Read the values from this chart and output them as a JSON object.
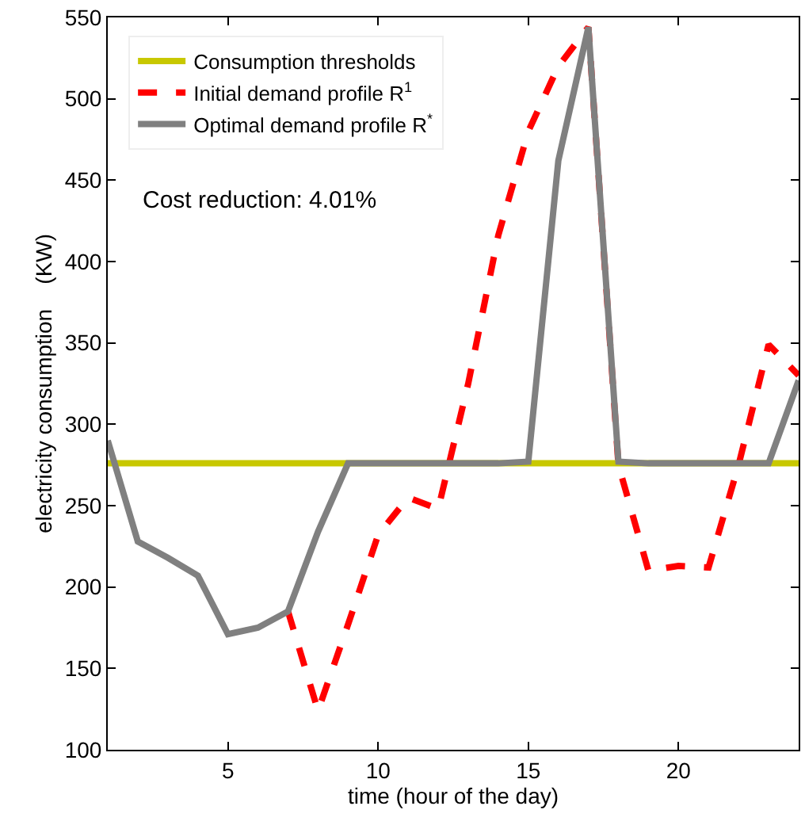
{
  "chart_data": {
    "type": "line",
    "xlabel": "time (hour of the day)",
    "ylabel": "electricity consumption    (KW)",
    "x": [
      1,
      2,
      3,
      4,
      5,
      6,
      7,
      8,
      9,
      10,
      11,
      12,
      13,
      14,
      15,
      16,
      17,
      18,
      19,
      20,
      21,
      22,
      23,
      24
    ],
    "series": [
      {
        "name": "Consumption thresholds",
        "color": "#c8c800",
        "x": [
          1,
          24
        ],
        "values": [
          276,
          276
        ],
        "line_style": "solid"
      },
      {
        "name": "Initial demand profile R$^{1}$",
        "color": "#ff0000",
        "values": [
          null,
          null,
          null,
          null,
          null,
          null,
          185,
          124,
          177,
          232,
          255,
          248,
          325,
          416,
          480,
          520,
          544,
          275,
          210,
          213,
          212,
          275,
          349,
          330
        ],
        "line_style": "dashed"
      },
      {
        "name": "Optimal demand profile R$^{*}$",
        "color": "#808080",
        "values": [
          290,
          228,
          218,
          207,
          171,
          175,
          185,
          234,
          276,
          276,
          276,
          276,
          276,
          276,
          277,
          462,
          544,
          277,
          276,
          276,
          276,
          276,
          276,
          327
        ],
        "line_style": "solid"
      }
    ],
    "xlim": [
      1,
      24
    ],
    "xticks": [
      5,
      10,
      15,
      20
    ],
    "ylim": [
      100,
      550
    ],
    "yticks": [
      100,
      150,
      200,
      250,
      300,
      350,
      400,
      450,
      500,
      550
    ],
    "grid": false,
    "legend": "top left",
    "annotations": [
      "Cost reduction: 4.01%"
    ]
  }
}
